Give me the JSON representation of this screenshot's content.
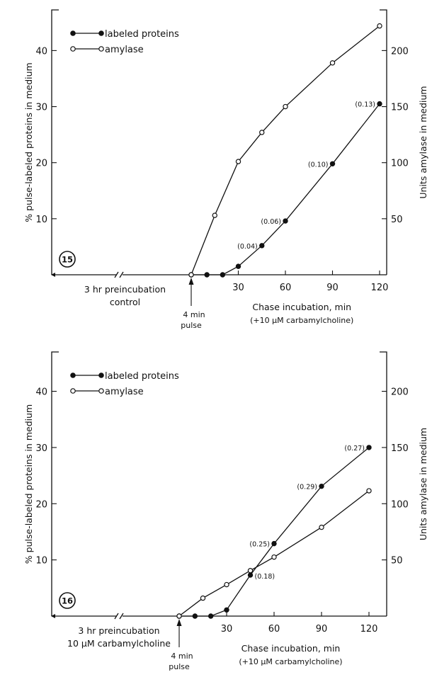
{
  "chart_data": [
    {
      "type": "line",
      "panel_label": "15",
      "left_axis": {
        "label": "% pulse-labeled proteins in medium",
        "ticks": [
          10,
          20,
          30,
          40
        ],
        "ylim": [
          0,
          47
        ]
      },
      "right_axis": {
        "label": "Units amylase in medium",
        "ticks": [
          50,
          100,
          150,
          200
        ],
        "ylim": [
          0,
          235
        ]
      },
      "x_axis": {
        "label": "Chase incubation, min",
        "sublabel": "(+10 μM carbamylcholine)",
        "ticks": [
          30,
          60,
          90,
          120
        ],
        "xlim": [
          0,
          125
        ]
      },
      "preincubation_label": [
        "3 hr preincubation",
        "control"
      ],
      "pulse_label": [
        "4 min",
        "pulse"
      ],
      "legend": [
        {
          "name": "labeled proteins",
          "marker": "filled"
        },
        {
          "name": "amylase",
          "marker": "open"
        }
      ],
      "series": [
        {
          "name": "labeled proteins",
          "marker": "filled",
          "axis": "left",
          "x": [
            0,
            10,
            20,
            30,
            45,
            60,
            90,
            120
          ],
          "y": [
            0,
            0,
            0,
            1.5,
            5.2,
            9.6,
            19.8,
            30.5
          ],
          "point_labels": [
            "",
            "",
            "",
            "",
            "(0.04)",
            "(0.06)",
            "(0.10)",
            "(0.13)"
          ]
        },
        {
          "name": "amylase",
          "marker": "open",
          "axis": "left",
          "x": [
            0,
            15,
            30,
            45,
            60,
            90,
            120
          ],
          "y": [
            0,
            10.6,
            20.2,
            25.4,
            30,
            37.8,
            44.4
          ],
          "point_labels": []
        }
      ]
    },
    {
      "type": "line",
      "panel_label": "16",
      "left_axis": {
        "label": "% pulse-labeled proteins in medium",
        "ticks": [
          10,
          20,
          30,
          40
        ],
        "ylim": [
          0,
          47
        ]
      },
      "right_axis": {
        "label": "Units amylase in medium",
        "ticks": [
          50,
          100,
          150,
          200
        ],
        "ylim": [
          0,
          235
        ]
      },
      "x_axis": {
        "label": "Chase incubation, min",
        "sublabel": "(+10 μM carbamylcholine)",
        "ticks": [
          30,
          60,
          90,
          120
        ],
        "xlim": [
          0,
          125
        ]
      },
      "preincubation_label": [
        "3 hr preincubation",
        "10 μM carbamylcholine"
      ],
      "pulse_label": [
        "4 min",
        "pulse"
      ],
      "legend": [
        {
          "name": "labeled proteins",
          "marker": "filled"
        },
        {
          "name": "amylase",
          "marker": "open"
        }
      ],
      "series": [
        {
          "name": "labeled proteins",
          "marker": "filled",
          "axis": "left",
          "x": [
            0,
            10,
            20,
            30,
            45,
            60,
            90,
            120
          ],
          "y": [
            0,
            0,
            0,
            1.1,
            7.3,
            12.9,
            23.1,
            30
          ],
          "point_labels": [
            "",
            "",
            "",
            "",
            "(0.18)",
            "(0.25)",
            "(0.29)",
            "(0.27)"
          ]
        },
        {
          "name": "amylase",
          "marker": "open",
          "axis": "left",
          "x": [
            0,
            15,
            30,
            45,
            60,
            90,
            120
          ],
          "y": [
            0,
            3.2,
            5.6,
            8.1,
            10.5,
            15.8,
            22.3
          ],
          "point_labels": []
        }
      ]
    }
  ]
}
